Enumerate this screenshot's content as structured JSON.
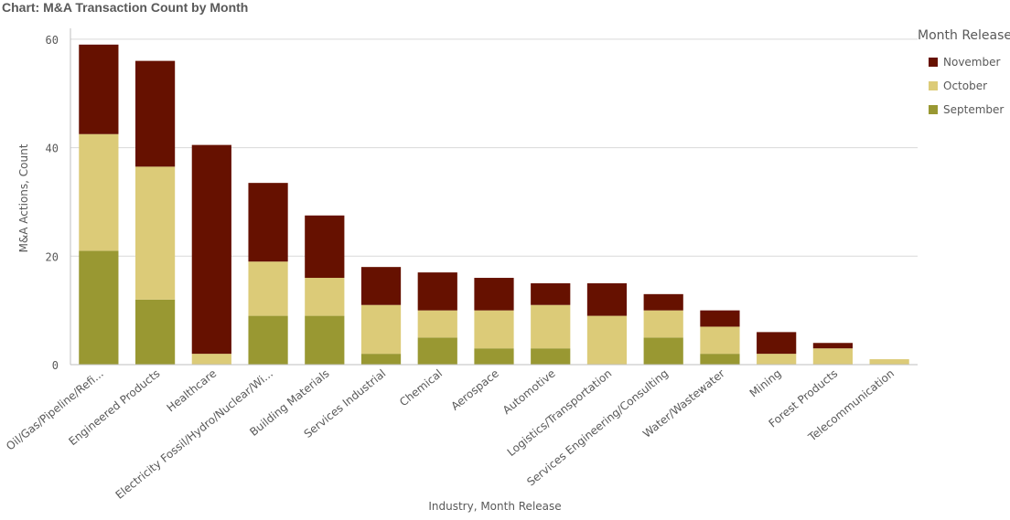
{
  "chart_data": {
    "type": "bar",
    "stacked": true,
    "title": "Chart: M&A Transaction Count by Month",
    "xlabel": "Industry,  Month Release",
    "ylabel": "M&A Actions, Count",
    "ylim": [
      0,
      62
    ],
    "yticks": [
      0,
      20,
      40,
      60
    ],
    "grid": true,
    "legend_position": "right",
    "legend_title": "Month Release",
    "categories": [
      "Oil/Gas/Pipeline/Refi...",
      "Engineered Products",
      "Healthcare",
      "Electricity Fossil/Hydro/Nuclear/Wi...",
      "Building Materials",
      "Services Industrial",
      "Chemical",
      "Aerospace",
      "Automotive",
      "Logistics/Transportation",
      "Services Engineering/Consulting",
      "Water/Wastewater",
      "Mining",
      "Forest Products",
      "Telecommunication"
    ],
    "series": [
      {
        "name": "September",
        "color": "#999832",
        "values": [
          21,
          12,
          0,
          9,
          9,
          2,
          5,
          3,
          3,
          0,
          5,
          2,
          0,
          0,
          0
        ]
      },
      {
        "name": "October",
        "color": "#dccb78",
        "values": [
          21.5,
          24.5,
          2,
          10,
          7,
          9,
          5,
          7,
          8,
          9,
          5,
          5,
          2,
          3,
          1
        ]
      },
      {
        "name": "November",
        "color": "#661100",
        "values": [
          16.5,
          19.5,
          38.5,
          14.5,
          11.5,
          7,
          7,
          6,
          4,
          6,
          3,
          3,
          4,
          1,
          0
        ]
      }
    ],
    "legend_order": [
      "November",
      "October",
      "September"
    ]
  }
}
